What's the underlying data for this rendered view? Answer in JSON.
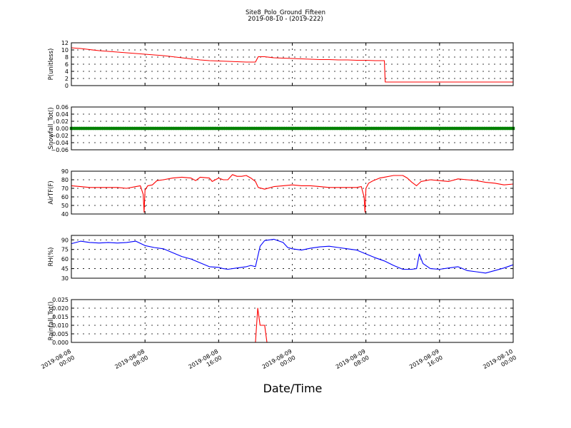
{
  "title": "Site8_Polo_Ground_Fifteen",
  "subtitle": "2019-08-10 - (2019-222)",
  "xlabel": "Date/Time",
  "x_ticks": [
    [
      "2019-08-08",
      "00:00"
    ],
    [
      "2019-08-08",
      "08:00"
    ],
    [
      "2019-08-08",
      "16:00"
    ],
    [
      "2019-08-09",
      "00:00"
    ],
    [
      "2019-08-09",
      "08:00"
    ],
    [
      "2019-08-09",
      "16:00"
    ],
    [
      "2019-08-10",
      "00:00"
    ]
  ],
  "chart_data": [
    {
      "type": "line",
      "ylabel": "P(unitless)",
      "ylim": [
        0,
        12
      ],
      "y_ticks": [
        "0",
        "2",
        "4",
        "6",
        "8",
        "10",
        "12"
      ],
      "grid": true,
      "color": "#ff0000",
      "series": [
        {
          "x": [
            0,
            1,
            2,
            3,
            4,
            5,
            6,
            7,
            8,
            9,
            10,
            11,
            12,
            13,
            14,
            15,
            16,
            17,
            18,
            19,
            20,
            20.3,
            21,
            22,
            23,
            24,
            25,
            26,
            27,
            28,
            29,
            30,
            31,
            32,
            33,
            34,
            34.1,
            35,
            36,
            40,
            44,
            48
          ],
          "values": [
            10.6,
            10.4,
            10.1,
            9.8,
            9.6,
            9.4,
            9.2,
            9.0,
            8.8,
            8.6,
            8.4,
            8.1,
            7.8,
            7.5,
            7.2,
            7.0,
            6.9,
            6.8,
            6.7,
            6.6,
            6.6,
            8.1,
            8.1,
            7.8,
            7.7,
            7.6,
            7.5,
            7.4,
            7.3,
            7.3,
            7.2,
            7.2,
            7.1,
            7.1,
            7.0,
            7.0,
            1.0,
            1.0,
            1.0,
            1.0,
            1.0,
            1.0
          ]
        }
      ]
    },
    {
      "type": "scatter",
      "ylabel": "Snowfall_Tot()",
      "ylim": [
        -0.06,
        0.06
      ],
      "y_ticks": [
        "−0.06",
        "−0.04",
        "−0.02",
        "0.00",
        "0.02",
        "0.04",
        "0.06"
      ],
      "grid": true,
      "color": "#008000",
      "series": [
        {
          "x_start": 0,
          "x_end": 48,
          "x_step": 0.25,
          "value": 0.0
        }
      ]
    },
    {
      "type": "line",
      "ylabel": "AirTF(F)",
      "ylim": [
        40,
        90
      ],
      "y_ticks": [
        "40",
        "50",
        "60",
        "70",
        "80",
        "90"
      ],
      "grid": true,
      "color": "#ff0000",
      "series": [
        {
          "x": [
            0,
            1,
            2,
            3,
            4,
            5,
            6,
            7,
            7.5,
            7.8,
            7.9,
            8.0,
            8.3,
            8.8,
            9.3,
            10,
            11,
            12,
            13,
            13.5,
            14,
            15,
            15.3,
            16,
            16.5,
            17,
            17.5,
            18,
            18.5,
            19,
            19.5,
            20,
            20.3,
            21,
            22,
            23,
            24,
            25,
            26,
            27,
            28,
            29,
            30,
            31,
            31.5,
            31.8,
            31.9,
            32.0,
            32.3,
            32.8,
            33.5,
            34,
            35,
            36,
            36.5,
            37,
            37.5,
            38,
            39,
            40,
            41,
            42,
            43,
            44,
            45,
            46,
            47,
            48
          ],
          "values": [
            73,
            72,
            71,
            71,
            71,
            71,
            70,
            72,
            73,
            63,
            42,
            68,
            73,
            74,
            79,
            80,
            82,
            83,
            82,
            79,
            83,
            82,
            78,
            82,
            80,
            80,
            86,
            84,
            84,
            85,
            82,
            78,
            71,
            69,
            72,
            73,
            74,
            73,
            73,
            72,
            71,
            71,
            71,
            71,
            72,
            60,
            42,
            70,
            76,
            79,
            82,
            83,
            85,
            85,
            82,
            77,
            73,
            78,
            80,
            79,
            78,
            81,
            80,
            79,
            77,
            76,
            74,
            75
          ]
        }
      ]
    },
    {
      "type": "line",
      "ylabel": "RH(%)",
      "ylim": [
        30,
        97
      ],
      "y_ticks": [
        "30",
        "45",
        "60",
        "75",
        "90"
      ],
      "grid": true,
      "color": "#0000ff",
      "series": [
        {
          "x": [
            0,
            1,
            2,
            3,
            4,
            5,
            6,
            7,
            8,
            9,
            10,
            11,
            12,
            13,
            14,
            15,
            16,
            16.5,
            17,
            18,
            19,
            19.5,
            20,
            20.5,
            21,
            22,
            23,
            23.5,
            24,
            25,
            26,
            27,
            28,
            29,
            30,
            31,
            32,
            33,
            34,
            35,
            36,
            37,
            37.5,
            37.8,
            38.2,
            39,
            40,
            41,
            42,
            43,
            44,
            45,
            46,
            47,
            48
          ],
          "values": [
            84,
            88,
            86,
            85,
            86,
            85,
            86,
            88,
            81,
            78,
            76,
            70,
            64,
            60,
            54,
            48,
            47,
            45,
            44,
            46,
            48,
            50,
            48,
            80,
            89,
            91,
            86,
            78,
            76,
            74,
            77,
            79,
            80,
            78,
            76,
            74,
            68,
            62,
            57,
            50,
            44,
            44,
            45,
            68,
            53,
            45,
            44,
            46,
            48,
            42,
            40,
            38,
            42,
            46,
            51
          ]
        }
      ]
    },
    {
      "type": "line",
      "ylabel": "Rainfall_Tot()",
      "ylim": [
        0,
        0.025
      ],
      "y_ticks": [
        "0.000",
        "0.005",
        "0.010",
        "0.015",
        "0.020",
        "0.025"
      ],
      "grid": true,
      "color": "#ff0000",
      "series": [
        {
          "x": [
            0,
            20,
            20.25,
            20.5,
            20.75,
            21.0,
            21.25,
            21.5,
            48
          ],
          "values": [
            0,
            0,
            0.02,
            0.01,
            0.01,
            0.01,
            0.0,
            0.0,
            0.0
          ]
        }
      ]
    }
  ]
}
